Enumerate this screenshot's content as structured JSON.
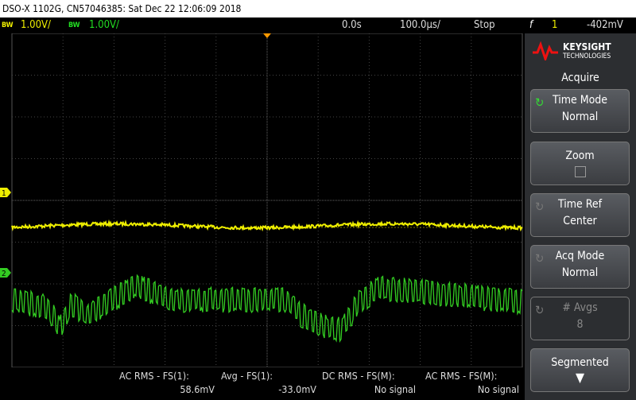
{
  "header": {
    "title": "DSO-X 1102G, CN57046385: Sat Dec 22 12:06:09 2018"
  },
  "status": {
    "bw": "BW",
    "ch1_scale": "1.00V/",
    "ch2_scale": "1.00V/",
    "time_offset": "0.0s",
    "time_scale": "100.0µs/",
    "run_state": "Stop",
    "trigger_source": "1",
    "trigger_level": "-402mV"
  },
  "brand": {
    "name": "KEYSIGHT",
    "sub": "TECHNOLOGIES"
  },
  "channels": [
    {
      "name": "1"
    },
    {
      "name": "2"
    }
  ],
  "menu": {
    "title": "Acquire",
    "buttons": [
      {
        "label": "Time Mode",
        "value": "Normal"
      },
      {
        "label": "Zoom"
      },
      {
        "label": "Time Ref",
        "value": "Center"
      },
      {
        "label": "Acq Mode",
        "value": "Normal"
      },
      {
        "label": "# Avgs",
        "value": "8"
      },
      {
        "label": "Segmented"
      }
    ]
  },
  "measurements": [
    {
      "label": "AC RMS - FS(1):",
      "value": "58.6mV"
    },
    {
      "label": "Avg - FS(1):",
      "value": "-33.0mV"
    },
    {
      "label": "DC RMS - FS(M):",
      "value": "No signal"
    },
    {
      "label": "AC RMS - FS(M):",
      "value": "No signal"
    }
  ]
}
